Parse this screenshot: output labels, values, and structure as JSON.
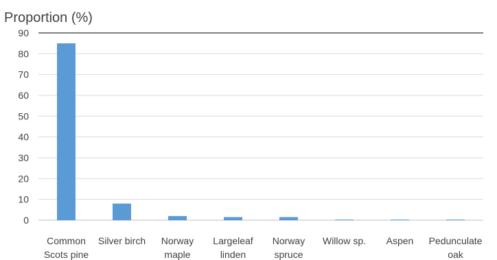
{
  "chart_data": {
    "type": "bar",
    "ylabel": "Proportion (%)",
    "ylim": [
      0,
      90
    ],
    "yticks": [
      0,
      10,
      20,
      30,
      40,
      50,
      60,
      70,
      80,
      90
    ],
    "grid": true,
    "bar_color": "#5b9bd5",
    "categories": [
      [
        "Common",
        "Scots pine"
      ],
      [
        "Silver birch"
      ],
      [
        "Norway",
        "maple"
      ],
      [
        "Largeleaf",
        "linden"
      ],
      [
        "Norway",
        "spruce"
      ],
      [
        "Willow sp."
      ],
      [
        "Aspen"
      ],
      [
        "Pedunculate",
        "oak"
      ]
    ],
    "values": [
      85,
      8,
      2,
      1.5,
      1.5,
      0.3,
      0.3,
      0.3
    ]
  }
}
